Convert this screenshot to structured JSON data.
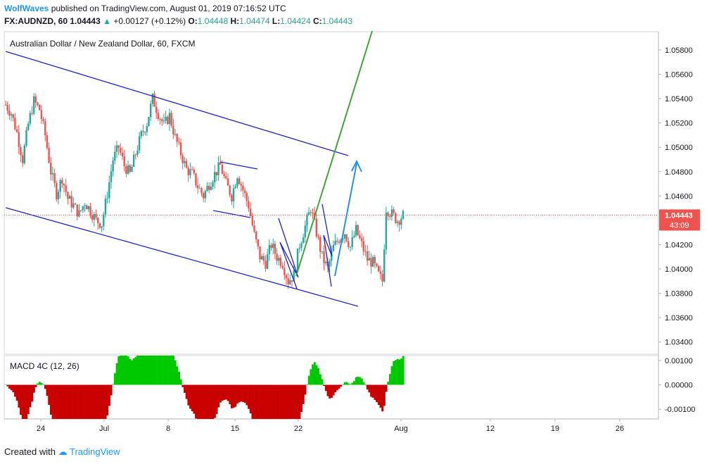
{
  "header": {
    "author": "WolfWaves",
    "published_text": "published on TradingView.com, August 01, 2019 07:16:52 UTC",
    "symbol_interval": "FX:AUDNZD, 60",
    "last": "1.04443",
    "change_arrow": "▲",
    "change": "+0.00127 (+0.12%)",
    "o_label": "O:",
    "o_value": "1.04448",
    "h_label": "H:",
    "h_value": "1.04474",
    "l_label": "L:",
    "l_value": "1.04424",
    "c_label": "C:",
    "c_value": "1.04443"
  },
  "colors": {
    "up": "#26a69a",
    "down": "#ef5350",
    "channel": "#1e22c8",
    "green_line": "#43a33a",
    "blue_arrow": "#2b8fe0",
    "price_tag": "#ef5350",
    "macd_up": "#00c800",
    "macd_down": "#c80000"
  },
  "chart_data": [
    {
      "type": "candlestick",
      "title": "Australian Dollar / New Zealand Dollar, 60, FXCM",
      "x_tick_labels": [
        "24",
        "Jul",
        "8",
        "15",
        "22",
        "Aug",
        "12",
        "19",
        "26"
      ],
      "y_tick_labels": [
        "1.05800",
        "1.05600",
        "1.05400",
        "1.05200",
        "1.05000",
        "1.04800",
        "1.04600",
        "1.04200",
        "1.04000",
        "1.03800",
        "1.03600",
        "1.03400"
      ],
      "ylim": [
        1.033,
        1.0595
      ],
      "last_price_label": "1.04443",
      "countdown_label": "43:09",
      "anchor_closes": [
        [
          0,
          1.0535
        ],
        [
          3,
          1.0528
        ],
        [
          6,
          1.0512
        ],
        [
          9,
          1.049
        ],
        [
          12,
          1.0519
        ],
        [
          15,
          1.0538
        ],
        [
          18,
          1.0531
        ],
        [
          21,
          1.051
        ],
        [
          24,
          1.048
        ],
        [
          27,
          1.0462
        ],
        [
          30,
          1.0475
        ],
        [
          33,
          1.0458
        ],
        [
          36,
          1.0452
        ],
        [
          39,
          1.0445
        ],
        [
          42,
          1.0455
        ],
        [
          45,
          1.0448
        ],
        [
          48,
          1.044
        ],
        [
          51,
          1.0437
        ],
        [
          54,
          1.0462
        ],
        [
          57,
          1.049
        ],
        [
          60,
          1.05
        ],
        [
          63,
          1.0485
        ],
        [
          66,
          1.0478
        ],
        [
          69,
          1.0495
        ],
        [
          72,
          1.051
        ],
        [
          75,
          1.052
        ],
        [
          78,
          1.054
        ],
        [
          81,
          1.0528
        ],
        [
          84,
          1.0518
        ],
        [
          87,
          1.0526
        ],
        [
          90,
          1.0508
        ],
        [
          93,
          1.0495
        ],
        [
          96,
          1.0482
        ],
        [
          99,
          1.0478
        ],
        [
          102,
          1.0468
        ],
        [
          105,
          1.046
        ],
        [
          108,
          1.047
        ],
        [
          111,
          1.0478
        ],
        [
          114,
          1.0485
        ],
        [
          117,
          1.047
        ],
        [
          120,
          1.046
        ],
        [
          123,
          1.0478
        ],
        [
          126,
          1.0465
        ],
        [
          129,
          1.0452
        ],
        [
          132,
          1.0428
        ],
        [
          135,
          1.041
        ],
        [
          138,
          1.0405
        ],
        [
          141,
          1.042
        ],
        [
          144,
          1.041
        ],
        [
          147,
          1.0405
        ],
        [
          150,
          1.039
        ],
        [
          153,
          1.0395
        ],
        [
          156,
          1.042
        ],
        [
          159,
          1.0435
        ],
        [
          162,
          1.045
        ],
        [
          165,
          1.043
        ],
        [
          168,
          1.041
        ],
        [
          171,
          1.04
        ],
        [
          174,
          1.0418
        ],
        [
          177,
          1.0425
        ],
        [
          180,
          1.043
        ],
        [
          183,
          1.0418
        ],
        [
          186,
          1.0432
        ],
        [
          189,
          1.042
        ],
        [
          192,
          1.0408
        ],
        [
          195,
          1.0405
        ],
        [
          198,
          1.0395
        ],
        [
          200,
          1.039
        ],
        [
          202,
          1.045
        ],
        [
          205,
          1.0445
        ],
        [
          208,
          1.044
        ],
        [
          211,
          1.0444
        ]
      ],
      "drawings": [
        {
          "type": "channel_upper",
          "points": [
            [
              1.0582,
              0
            ],
            [
              1.0498,
              0.53
            ]
          ]
        },
        {
          "type": "channel_lower",
          "points": [
            [
              1.0454,
              0
            ],
            [
              1.0372,
              0.54
            ]
          ]
        }
      ]
    },
    {
      "type": "histogram",
      "title": "MACD 4C (12, 26)",
      "y_tick_labels": [
        "0.00100",
        "0.00000",
        "-0.00100"
      ],
      "ylim": [
        -0.0014,
        0.0012
      ]
    }
  ],
  "footer": {
    "created_with": "Created with",
    "brand": "TradingView"
  }
}
